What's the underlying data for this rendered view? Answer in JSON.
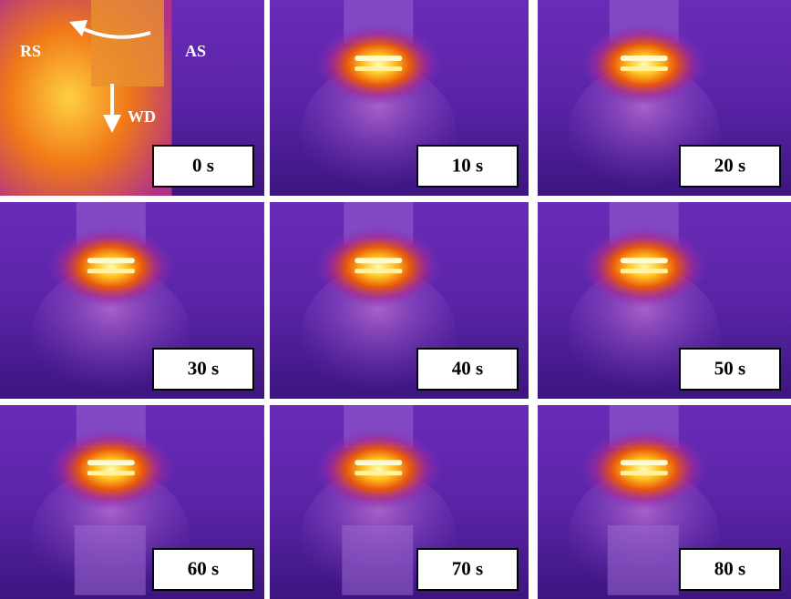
{
  "panels": [
    "0 s",
    "10 s",
    "20 s",
    "30 s",
    "40 s",
    "50 s",
    "60 s",
    "70 s",
    "80 s"
  ],
  "annotations": [
    "RS",
    "AS",
    "WD"
  ]
}
